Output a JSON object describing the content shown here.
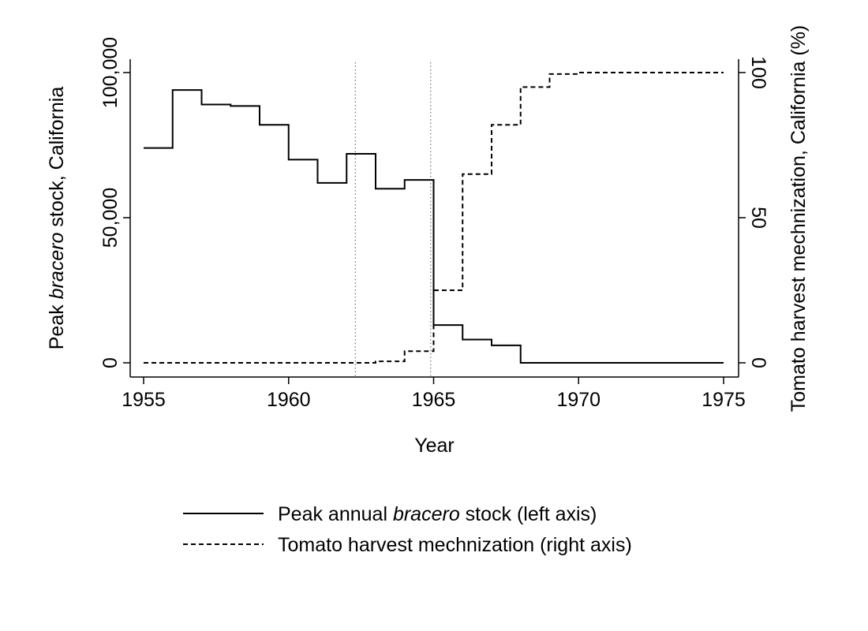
{
  "chart_data": {
    "type": "line",
    "step": true,
    "xlabel": "Year",
    "ylabel_left": {
      "prefix": "Peak ",
      "italic": "bracero",
      "suffix": " stock, California"
    },
    "ylabel_right": "Tomato harvest mechnization, California (%)",
    "xlim": [
      1955,
      1975
    ],
    "ylim_left": [
      0,
      100000
    ],
    "ylim_right": [
      0,
      100
    ],
    "x_ticks": [
      1955,
      1960,
      1965,
      1970,
      1975
    ],
    "y_left_ticks": [
      {
        "value": 0,
        "label": "0"
      },
      {
        "value": 50000,
        "label": "50,000"
      },
      {
        "value": 100000,
        "label": "100,000"
      }
    ],
    "y_right_ticks": [
      {
        "value": 0,
        "label": "0"
      },
      {
        "value": 50,
        "label": "50"
      },
      {
        "value": 100,
        "label": "100"
      }
    ],
    "vlines": [
      1962.3,
      1964.9
    ],
    "grid": false,
    "legend_placement": "bottom",
    "series": [
      {
        "name": "Peak annual bracero stock (left axis)",
        "legend": {
          "prefix": "Peak annual ",
          "italic": "bracero",
          "suffix": " stock (left axis)"
        },
        "axis": "left",
        "style": "solid",
        "x": [
          1955,
          1956,
          1957,
          1958,
          1959,
          1960,
          1961,
          1962,
          1963,
          1964,
          1965,
          1966,
          1967,
          1968,
          1969,
          1970,
          1971,
          1972,
          1973,
          1974,
          1975
        ],
        "y": [
          74000,
          94000,
          89000,
          88500,
          82000,
          70000,
          62000,
          72000,
          60000,
          63000,
          13000,
          8000,
          6000,
          0,
          0,
          0,
          0,
          0,
          0,
          0,
          0
        ]
      },
      {
        "name": "Tomato harvest mechnization (right axis)",
        "legend": {
          "prefix": "Tomato harvest mechnization (right axis)",
          "italic": "",
          "suffix": ""
        },
        "axis": "right",
        "style": "dashed",
        "x": [
          1955,
          1956,
          1957,
          1958,
          1959,
          1960,
          1961,
          1962,
          1963,
          1964,
          1965,
          1966,
          1967,
          1968,
          1969,
          1970,
          1971,
          1972,
          1973,
          1974,
          1975
        ],
        "y": [
          0,
          0,
          0,
          0,
          0,
          0,
          0,
          0,
          0.5,
          4,
          25,
          65,
          82,
          95,
          99.5,
          100,
          100,
          100,
          100,
          100,
          100
        ]
      }
    ]
  }
}
